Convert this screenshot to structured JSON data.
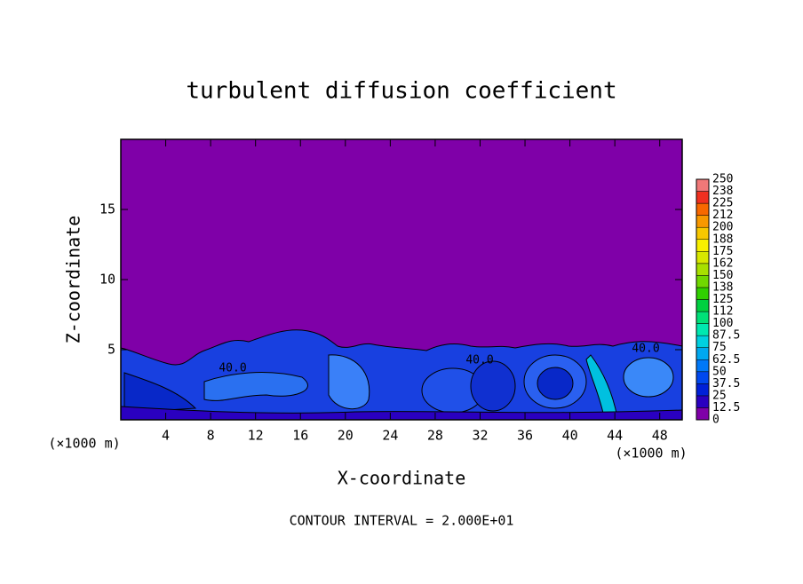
{
  "chart_data": {
    "type": "contour",
    "title": "turbulent diffusion coefficient",
    "xlabel": "X-coordinate",
    "ylabel": "Z-coordinate",
    "x_unit": "(×1000 m)",
    "footer": "CONTOUR INTERVAL = 2.000E+01",
    "contour_labels": [
      "40.0",
      "40.0",
      "40.0"
    ],
    "xlim": [
      0,
      50
    ],
    "xticks": [
      4,
      8,
      12,
      16,
      20,
      24,
      28,
      32,
      36,
      40,
      44,
      48
    ],
    "ylim": [
      0,
      20
    ],
    "yticks": [
      5,
      10,
      15
    ],
    "colorbar": {
      "levels": [
        0,
        12.5,
        25,
        37.5,
        50,
        62.5,
        75,
        87.5,
        100,
        112,
        125,
        138,
        150,
        162,
        175,
        188,
        200,
        212,
        225,
        238,
        250
      ],
      "colors": [
        "#7f00a8",
        "#2a00c0",
        "#0020d8",
        "#0048ee",
        "#0078f8",
        "#00a8f0",
        "#00d0e0",
        "#00e8b0",
        "#00e078",
        "#00d040",
        "#30d000",
        "#70d800",
        "#a8e000",
        "#d8e800",
        "#f8f000",
        "#f8c800",
        "#f89800",
        "#f86800",
        "#f03020",
        "#f07878"
      ]
    }
  }
}
